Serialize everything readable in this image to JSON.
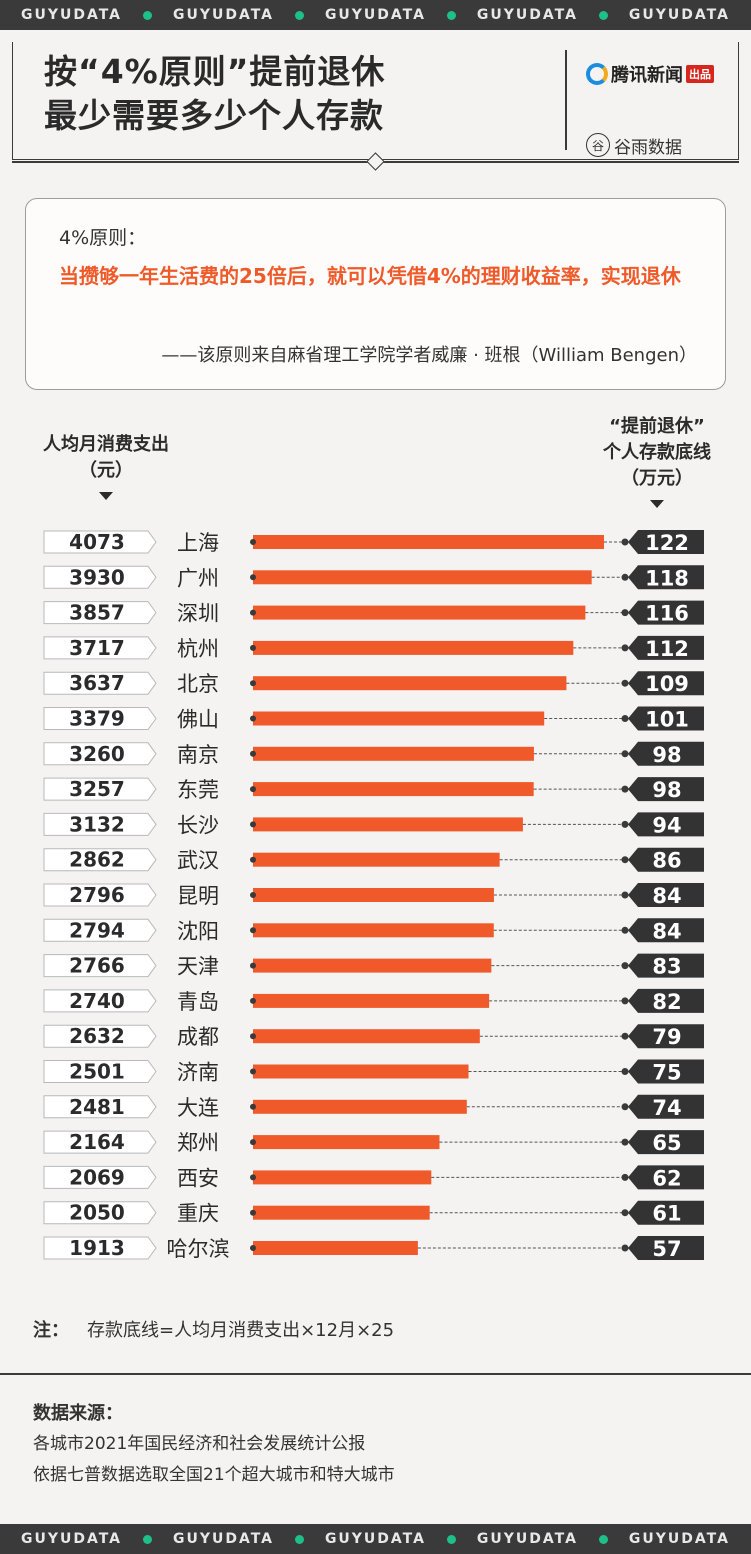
{
  "strip_text": "GUYUDATA",
  "header": {
    "title_line1": "按“4%原则”提前退休",
    "title_line2": "最少需要多少个人存款",
    "logo1_text": "腾讯新闻",
    "logo1_tag": "出品",
    "logo2_text": "谷雨数据",
    "logo2_mark": "谷"
  },
  "quote": {
    "label": "4%原则：",
    "text": "当攒够一年生活费的25倍后，就可以凭借4%的理财收益率，实现退休",
    "source": "——该原则来自麻省理工学院学者威廉 · 班根（William Bengen）"
  },
  "columns": {
    "left_line1": "人均月消费支出",
    "left_line2": "（元）",
    "right_line1": "“提前退休”",
    "right_line2": "个人存款底线",
    "right_line3": "（万元）"
  },
  "chart_data": {
    "type": "bar",
    "orientation": "horizontal",
    "categories": [
      "上海",
      "广州",
      "深圳",
      "杭州",
      "北京",
      "佛山",
      "南京",
      "东莞",
      "长沙",
      "武汉",
      "昆明",
      "沈阳",
      "天津",
      "青岛",
      "成都",
      "济南",
      "大连",
      "郑州",
      "西安",
      "重庆",
      "哈尔滨"
    ],
    "monthly_spending": [
      4073,
      3930,
      3857,
      3717,
      3637,
      3379,
      3260,
      3257,
      3132,
      2862,
      2796,
      2794,
      2766,
      2740,
      2632,
      2501,
      2481,
      2164,
      2069,
      2050,
      1913
    ],
    "savings_threshold": [
      122,
      118,
      116,
      112,
      109,
      101,
      98,
      98,
      94,
      86,
      84,
      84,
      83,
      82,
      79,
      75,
      74,
      65,
      62,
      61,
      57
    ],
    "colors": {
      "bar": "#f05a2b",
      "tag": "#333333",
      "label_bg": "#ffffff"
    }
  },
  "note": {
    "label": "注",
    "sep": "：",
    "text": "存款底线=人均月消费支出×12月×25"
  },
  "source": {
    "title": "数据来源：",
    "line1": "各城市2021年国民经济和社会发展统计公报",
    "line2": "依据七普数据选取全国21个超大城市和特大城市"
  }
}
